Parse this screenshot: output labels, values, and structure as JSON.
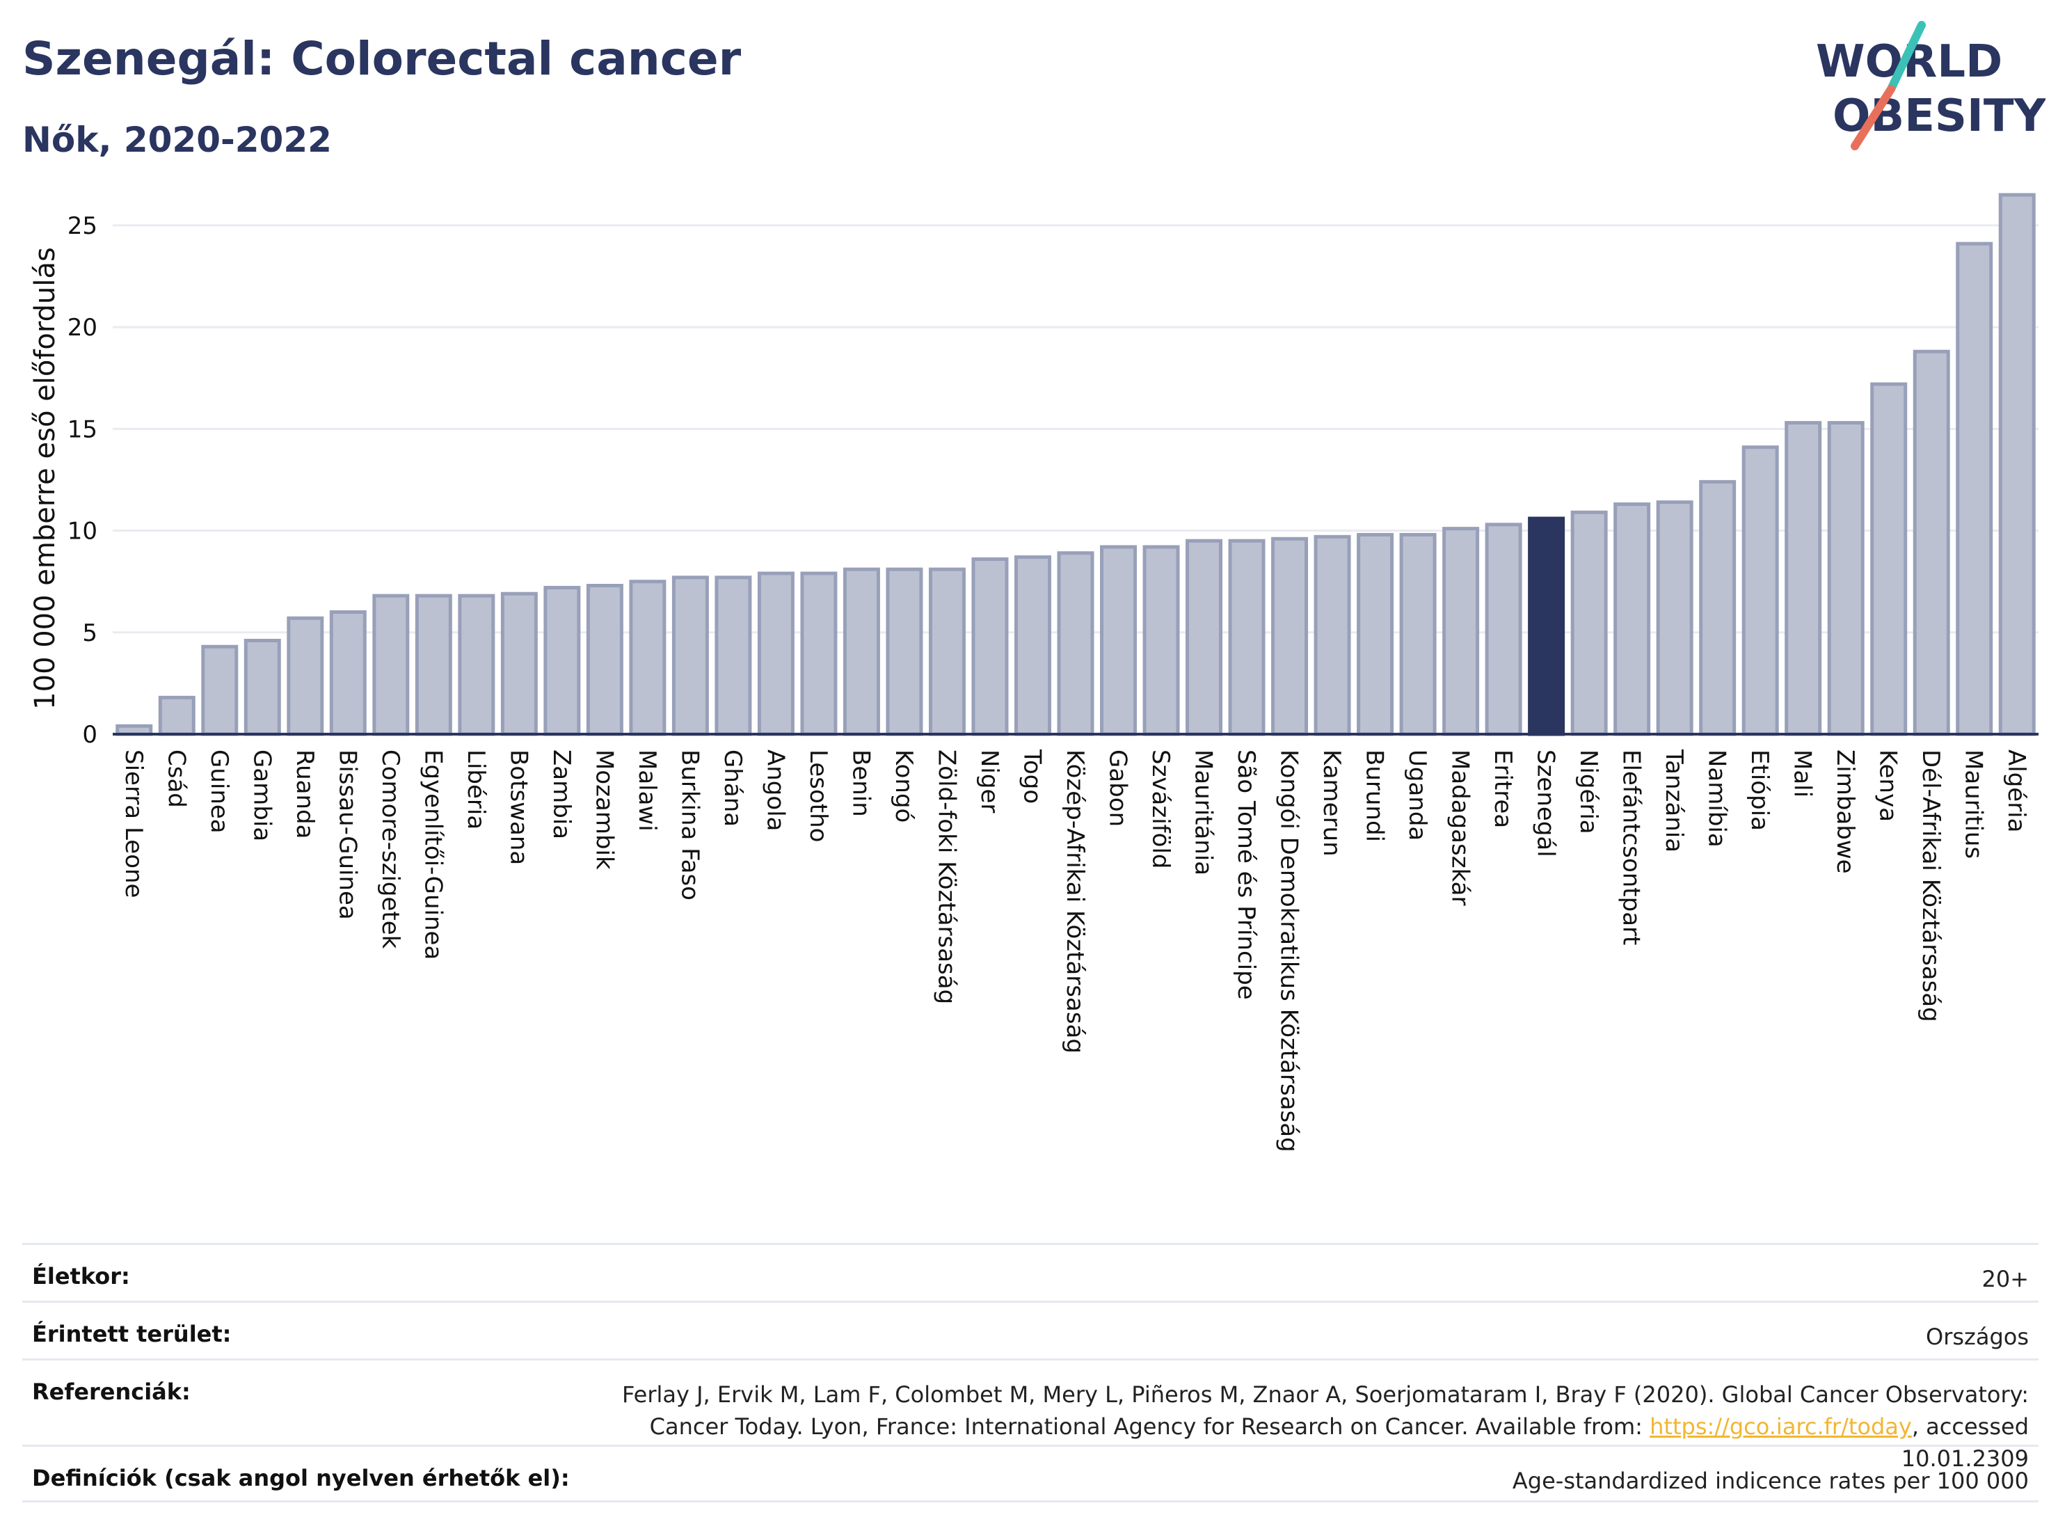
{
  "title": "Szenegál: Colorectal cancer",
  "subtitle": "Nők, 2020-2022",
  "logo": {
    "line1": "WORLD",
    "line2": "OBESITY",
    "accent_teal": "#3cc1b7",
    "accent_coral": "#e8705a",
    "color": "#2a3560"
  },
  "colors": {
    "bar": "#bcc1d1",
    "bar_border": "#98a0b9",
    "highlight": "#2a3560",
    "axis": "#2a3560",
    "grid": "#e9ebf0"
  },
  "chart_data": {
    "type": "bar",
    "ylabel": "100 000 emberre eső előfordulás",
    "ylim": [
      0,
      26.5
    ],
    "yticks": [
      0,
      5,
      10,
      15,
      20,
      25
    ],
    "grid": true,
    "highlight": "Szenegál",
    "categories": [
      "Sierra Leone",
      "Csád",
      "Guinea",
      "Gambia",
      "Ruanda",
      "Bissau-Guinea",
      "Comore-szigetek",
      "Egyenlítői-Guinea",
      "Libéria",
      "Botswana",
      "Zambia",
      "Mozambik",
      "Malawi",
      "Burkina Faso",
      "Ghána",
      "Angola",
      "Lesotho",
      "Benin",
      "Kongó",
      "Zöld-foki Köztársaság",
      "Niger",
      "Togo",
      "Közép-Afrikai Köztársaság",
      "Gabon",
      "Szváziföld",
      "Mauritánia",
      "São Tomé és Príncipe",
      "Kongói Demokratikus Köztársaság",
      "Kamerun",
      "Burundi",
      "Uganda",
      "Madagaszkár",
      "Eritrea",
      "Szenegál",
      "Nigéria",
      "Elefántcsontpart",
      "Tanzánia",
      "Namíbia",
      "Etiópia",
      "Mali",
      "Zimbabwe",
      "Kenya",
      "Dél-Afrikai Köztársaság",
      "Mauritius",
      "Algéria"
    ],
    "values": [
      0.4,
      1.8,
      4.3,
      4.6,
      5.7,
      6.0,
      6.8,
      6.8,
      6.8,
      6.9,
      7.2,
      7.3,
      7.5,
      7.7,
      7.7,
      7.9,
      7.9,
      8.1,
      8.1,
      8.1,
      8.6,
      8.7,
      8.9,
      9.2,
      9.2,
      9.5,
      9.5,
      9.6,
      9.7,
      9.8,
      9.8,
      10.1,
      10.3,
      10.6,
      10.9,
      11.3,
      11.4,
      12.4,
      14.1,
      15.3,
      15.3,
      17.2,
      18.8,
      24.1,
      26.5
    ]
  },
  "info": {
    "age_label": "Életkor:",
    "age_value": "20+",
    "area_label": "Érintett terület:",
    "area_value": "Országos",
    "ref_label": "Referenciák:",
    "ref_text_1": "Ferlay J, Ervik M, Lam F, Colombet M, Mery L, Piñeros M, Znaor A, Soerjomataram I, Bray F (2020). Global Cancer Observatory: Cancer Today. Lyon, France: International Agency for Research on Cancer. Available from: ",
    "ref_link": "https://gco.iarc.fr/today",
    "ref_text_2": ", accessed 10.01.2309",
    "def_label": "Definíciók (csak angol nyelven érhetők el):",
    "def_value": "Age-standardized indicence rates per 100 000"
  }
}
